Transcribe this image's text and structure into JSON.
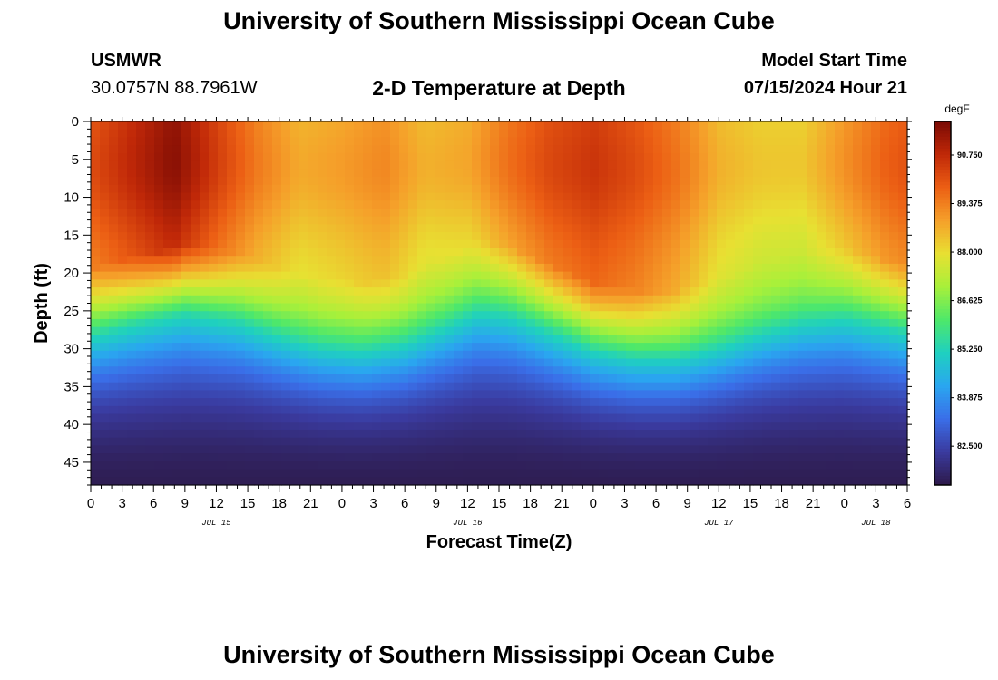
{
  "header": {
    "title": "University of Southern Mississippi Ocean Cube",
    "station_id": "USMWR",
    "coordinates": "30.0757N  88.7961W",
    "subtitle": "2-D Temperature at Depth",
    "model_start_label": "Model Start Time",
    "model_start_value": "07/15/2024 Hour 21"
  },
  "footer": {
    "title": "University of Southern Mississippi Ocean Cube"
  },
  "colors": {
    "background": "#ffffff",
    "axis": "#000000",
    "colormap": [
      "#2d1a4a",
      "#3a3a9e",
      "#3a6ee8",
      "#2aa6f0",
      "#1fd0c0",
      "#4ee86a",
      "#a8f03a",
      "#e8e032",
      "#f5a02a",
      "#ec5f14",
      "#c02808",
      "#7a0a04"
    ]
  },
  "chart_data": {
    "type": "heatmap",
    "title": "2-D Temperature at Depth",
    "xlabel": "Forecast Time(Z)",
    "ylabel": "Depth (ft)",
    "x_unit": "hours since 07/15/2024 00Z",
    "xlim": [
      0,
      78
    ],
    "ylim": [
      0,
      48
    ],
    "y_inverted": true,
    "x_ticks": [
      0,
      3,
      6,
      9,
      12,
      15,
      18,
      21,
      24,
      27,
      30,
      33,
      36,
      39,
      42,
      45,
      48,
      51,
      54,
      57,
      60,
      63,
      66,
      69,
      72,
      75,
      78
    ],
    "x_tick_labels": [
      "0",
      "3",
      "6",
      "9",
      "12",
      "15",
      "18",
      "21",
      "0",
      "3",
      "6",
      "9",
      "12",
      "15",
      "18",
      "21",
      "0",
      "3",
      "6",
      "9",
      "12",
      "15",
      "18",
      "21",
      "0",
      "3",
      "6"
    ],
    "date_labels": [
      {
        "x": 12,
        "text": "JUL 15"
      },
      {
        "x": 36,
        "text": "JUL 16"
      },
      {
        "x": 60,
        "text": "JUL 17"
      },
      {
        "x": 75,
        "text": "JUL 18"
      }
    ],
    "y_ticks": [
      0,
      5,
      10,
      15,
      20,
      25,
      30,
      35,
      40,
      45
    ],
    "y_tick_labels": [
      "0",
      "5",
      "10",
      "15",
      "20",
      "25",
      "30",
      "35",
      "40",
      "45"
    ],
    "colorbar": {
      "unit": "degF",
      "range": [
        81.4,
        91.7
      ],
      "ticks": [
        82.5,
        83.875,
        85.25,
        86.625,
        88.0,
        89.375,
        90.75
      ],
      "tick_labels": [
        "82.500",
        "83.875",
        "85.250",
        "86.625",
        "88.000",
        "89.375",
        "90.750"
      ]
    },
    "temperature_model": {
      "surface_profile": {
        "times": [
          0,
          4,
          8,
          12,
          16,
          20,
          24,
          28,
          32,
          36,
          40,
          44,
          48,
          52,
          56,
          60,
          64,
          68,
          72,
          76,
          78
        ],
        "temps_degF": [
          89.9,
          90.6,
          91.3,
          90.2,
          89.2,
          88.5,
          88.7,
          89.0,
          88.4,
          88.6,
          89.4,
          90.0,
          90.3,
          89.9,
          89.3,
          88.4,
          88.1,
          88.1,
          88.9,
          89.6,
          89.8
        ]
      },
      "thermocline_depth_ft": {
        "times": [
          0,
          4,
          9,
          14,
          18,
          22,
          26,
          30,
          34,
          37,
          40,
          44,
          48,
          52,
          56,
          60,
          64,
          68,
          72,
          75,
          78
        ],
        "depths": [
          28.5,
          27.0,
          25.5,
          26.5,
          28.5,
          30.0,
          30.5,
          29.5,
          27.0,
          25.0,
          25.5,
          28.0,
          30.5,
          31.5,
          31.5,
          30.0,
          28.0,
          26.5,
          26.0,
          27.0,
          28.0
        ]
      },
      "bottom_temp_degF": 81.5
    }
  }
}
